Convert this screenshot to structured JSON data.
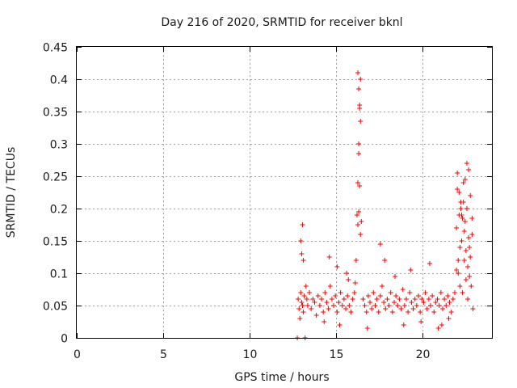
{
  "chart_data": {
    "type": "scatter",
    "title": "Day 216 of 2020, SRMTID for receiver bknl",
    "xlabel": "GPS time / hours",
    "ylabel": "SRMTID / TECUs",
    "xlim": [
      0,
      24
    ],
    "ylim": [
      0,
      0.45
    ],
    "x_ticks": [
      0,
      5,
      10,
      15,
      20
    ],
    "x_tick_labels": [
      "0",
      "5",
      "10",
      "15",
      "20"
    ],
    "y_ticks": [
      0,
      0.05,
      0.1,
      0.15,
      0.2,
      0.25,
      0.3,
      0.35,
      0.4,
      0.45
    ],
    "y_tick_labels": [
      "0",
      "0.05",
      "0.1",
      "0.15",
      "0.2",
      "0.25",
      "0.3",
      "0.35",
      "0.4",
      "0.45"
    ],
    "grid": true,
    "marker": "plus",
    "color": "#ff0000",
    "series": [
      {
        "x": [
          12.8,
          12.85,
          12.9,
          12.95,
          13.0,
          13.05,
          13.1,
          13.15,
          13.25,
          13.3,
          13.35,
          13.45,
          13.55,
          13.65,
          13.75,
          13.85,
          13.95,
          14.05,
          14.15,
          14.25,
          14.35,
          14.45,
          14.55,
          14.65,
          14.75,
          14.85,
          14.95,
          15.05,
          15.15,
          15.25,
          15.35,
          15.45,
          15.55,
          15.65,
          15.75,
          15.85,
          15.95,
          16.05,
          16.1,
          16.15,
          16.2,
          16.25,
          16.3,
          16.35,
          16.4,
          16.45,
          16.55,
          16.65,
          16.75,
          16.85,
          16.95,
          17.05,
          17.15,
          17.25,
          17.35,
          17.45,
          17.55,
          17.65,
          17.75,
          17.85,
          17.95,
          18.05,
          18.15,
          18.25,
          18.35,
          18.45,
          18.55,
          18.65,
          18.75,
          18.85,
          18.95,
          19.05,
          19.15,
          19.25,
          19.35,
          19.45,
          19.55,
          19.65,
          19.75,
          19.85,
          19.95,
          20.05,
          20.15,
          20.25,
          20.35,
          20.45,
          20.55,
          20.65,
          20.75,
          20.85,
          20.95,
          21.05,
          21.15,
          21.25,
          21.35,
          21.45,
          21.55,
          21.65,
          21.75,
          21.85,
          21.95,
          22.0,
          22.05,
          22.1,
          22.15,
          22.2,
          22.25,
          22.3,
          22.35,
          22.4,
          22.45,
          22.5,
          22.55,
          22.6,
          22.65,
          22.7,
          22.75,
          22.8,
          22.85,
          22.9,
          12.75,
          13.2,
          12.95,
          13.05,
          15.6,
          15.7,
          16.25,
          16.3,
          16.35,
          16.4,
          16.3,
          16.35,
          16.3,
          16.25,
          16.4,
          22.0,
          22.1,
          22.2,
          22.3,
          22.4,
          22.5,
          22.6,
          22.7,
          22.55,
          22.45,
          22.35,
          22.25,
          22.15,
          22.05,
          21.95,
          22.65,
          22.75,
          22.85,
          13.0,
          13.1,
          14.6,
          15.05,
          17.55,
          17.8,
          18.4,
          19.3,
          20.4,
          21.1,
          21.5,
          15.2,
          14.3,
          16.8,
          18.9,
          19.9,
          20.9
        ],
        "y": [
          0.06,
          0.045,
          0.03,
          0.07,
          0.055,
          0.05,
          0.04,
          0.065,
          0.08,
          0.06,
          0.05,
          0.07,
          0.045,
          0.06,
          0.055,
          0.035,
          0.065,
          0.05,
          0.06,
          0.04,
          0.07,
          0.055,
          0.045,
          0.08,
          0.06,
          0.05,
          0.065,
          0.04,
          0.055,
          0.07,
          0.05,
          0.06,
          0.045,
          0.065,
          0.05,
          0.04,
          0.06,
          0.07,
          0.085,
          0.12,
          0.19,
          0.24,
          0.3,
          0.36,
          0.4,
          0.18,
          0.06,
          0.05,
          0.04,
          0.065,
          0.055,
          0.045,
          0.07,
          0.05,
          0.06,
          0.04,
          0.065,
          0.08,
          0.055,
          0.045,
          0.06,
          0.05,
          0.07,
          0.04,
          0.055,
          0.065,
          0.05,
          0.06,
          0.045,
          0.075,
          0.05,
          0.06,
          0.04,
          0.07,
          0.055,
          0.045,
          0.06,
          0.05,
          0.065,
          0.04,
          0.06,
          0.055,
          0.07,
          0.045,
          0.06,
          0.05,
          0.065,
          0.04,
          0.055,
          0.06,
          0.05,
          0.07,
          0.045,
          0.06,
          0.05,
          0.065,
          0.055,
          0.04,
          0.06,
          0.07,
          0.17,
          0.23,
          0.1,
          0.19,
          0.08,
          0.21,
          0.15,
          0.07,
          0.24,
          0.12,
          0.18,
          0.09,
          0.2,
          0.06,
          0.26,
          0.14,
          0.22,
          0.08,
          0.16,
          0.045,
          0.0,
          0.0,
          0.15,
          0.175,
          0.1,
          0.09,
          0.41,
          0.385,
          0.355,
          0.335,
          0.285,
          0.235,
          0.195,
          0.175,
          0.16,
          0.255,
          0.225,
          0.2,
          0.185,
          0.165,
          0.135,
          0.11,
          0.095,
          0.27,
          0.245,
          0.21,
          0.19,
          0.14,
          0.12,
          0.105,
          0.155,
          0.125,
          0.185,
          0.13,
          0.12,
          0.125,
          0.11,
          0.145,
          0.12,
          0.095,
          0.105,
          0.115,
          0.02,
          0.03,
          0.02,
          0.025,
          0.015,
          0.02,
          0.025,
          0.015
        ]
      }
    ]
  }
}
